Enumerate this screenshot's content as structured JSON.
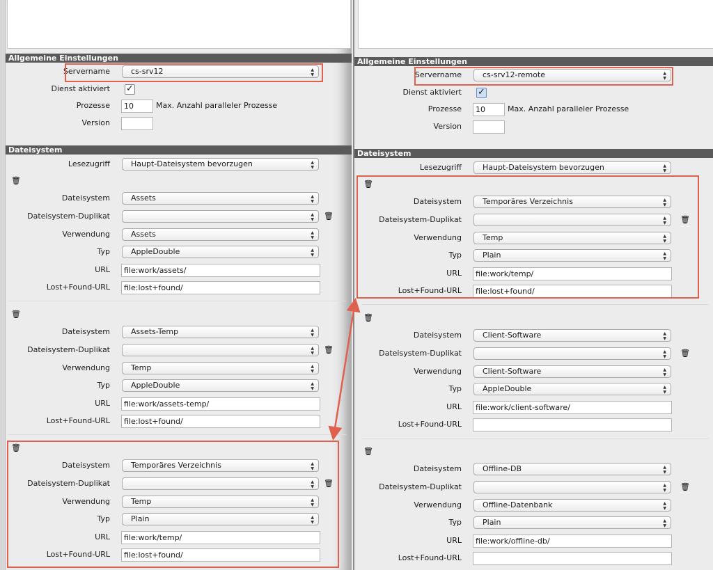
{
  "labels": {
    "general_title": "Allgemeine Einstellungen",
    "servername": "Servername",
    "dienst": "Dienst aktiviert",
    "prozesse": "Prozesse",
    "prozesse_hint": "Max. Anzahl paralleler Prozesse",
    "version": "Version",
    "filesystem_title": "Dateisystem",
    "lesezugriff": "Lesezugriff",
    "dateisystem": "Dateisystem",
    "duplikat": "Dateisystem-Duplikat",
    "verwendung": "Verwendung",
    "typ": "Typ",
    "url": "URL",
    "lost_found_url": "Lost+Found-URL"
  },
  "icons": {
    "delete": "trash-icon",
    "select_arrows": "up-down-chevron-icon",
    "checkbox": "checkmark-icon"
  },
  "colors": {
    "highlight": "#e06050",
    "section_header": "#5a5a5a"
  },
  "panels": [
    {
      "servername": "cs-srv12",
      "dienst_checked": true,
      "prozesse": "10",
      "version": "",
      "lesezugriff": "Haupt-Dateisystem bevorzugen",
      "groups": [
        {
          "dateisystem": "Assets",
          "duplikat": "",
          "verwendung": "Assets",
          "typ": "AppleDouble",
          "url": "file:work/assets/",
          "lost_found_url": "file:lost+found/"
        },
        {
          "dateisystem": "Assets-Temp",
          "duplikat": "",
          "verwendung": "Temp",
          "typ": "AppleDouble",
          "url": "file:work/assets-temp/",
          "lost_found_url": "file:lost+found/"
        },
        {
          "dateisystem": "Temporäres Verzeichnis",
          "duplikat": "",
          "verwendung": "Temp",
          "typ": "Plain",
          "url": "file:work/temp/",
          "lost_found_url": "file:lost+found/"
        }
      ]
    },
    {
      "servername": "cs-srv12-remote",
      "dienst_checked": true,
      "prozesse": "10",
      "version": "",
      "lesezugriff": "Haupt-Dateisystem bevorzugen",
      "groups": [
        {
          "dateisystem": "Temporäres Verzeichnis",
          "duplikat": "",
          "verwendung": "Temp",
          "typ": "Plain",
          "url": "file:work/temp/",
          "lost_found_url": "file:lost+found/"
        },
        {
          "dateisystem": "Client-Software",
          "duplikat": "",
          "verwendung": "Client-Software",
          "typ": "AppleDouble",
          "url": "file:work/client-software/",
          "lost_found_url": ""
        },
        {
          "dateisystem": "Offline-DB",
          "duplikat": "",
          "verwendung": "Offline-Datenbank",
          "typ": "Plain",
          "url": "file:work/offline-db/",
          "lost_found_url": ""
        }
      ]
    }
  ]
}
